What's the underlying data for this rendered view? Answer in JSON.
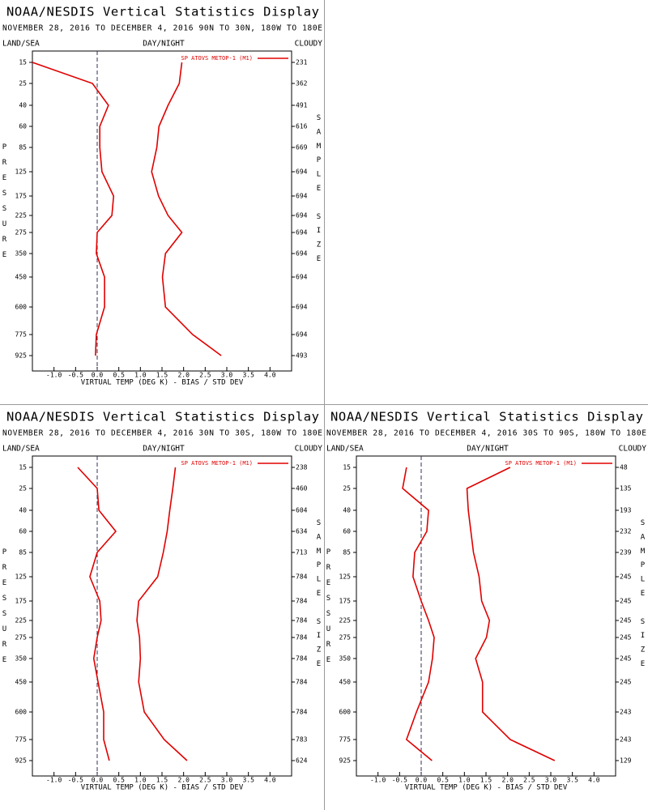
{
  "chart_data": [
    {
      "type": "line",
      "title": "NOAA/NESDIS Vertical Statistics Display",
      "subtitle": "NOVEMBER 28, 2016 TO DECEMBER 4, 2016 90N TO 30N, 180W TO 180E",
      "left_header": "LAND/SEA",
      "center_header": "DAY/NIGHT",
      "right_header": "CLOUDY",
      "y_label": "PRESSURE",
      "y2_label": "SAMPLE SIZE",
      "x_label": "VIRTUAL TEMP (DEG K) - BIAS / STD DEV",
      "categories": [
        "15",
        "25",
        "40",
        "60",
        "85",
        "125",
        "175",
        "225",
        "275",
        "350",
        "450",
        "600",
        "775",
        "925"
      ],
      "sample_size": [
        231,
        362,
        491,
        616,
        669,
        694,
        694,
        694,
        694,
        694,
        694,
        694,
        694,
        493
      ],
      "series": [
        {
          "name": "SP ATOVS METOP-1 (M1)",
          "color": "#e00000",
          "values": [
            -1.5,
            -0.11,
            0.26,
            0.06,
            0.06,
            0.11,
            0.38,
            0.34,
            0.0,
            -0.02,
            0.17,
            0.17,
            -0.02,
            -0.04
          ],
          "std_dev": [
            1.96,
            1.9,
            1.64,
            1.43,
            1.38,
            1.26,
            1.42,
            1.64,
            1.96,
            1.58,
            1.51,
            1.58,
            2.21,
            2.87
          ]
        }
      ],
      "xlim": [
        -1.5,
        4.5
      ],
      "xticks": [
        {
          "value": -1,
          "label": "-1.0"
        },
        {
          "value": -0.5,
          "label": "-0.5"
        },
        {
          "value": 0,
          "label": "0.0"
        },
        {
          "value": 0.5,
          "label": "0.5"
        },
        {
          "value": 1,
          "label": "1.0"
        },
        {
          "value": 1.5,
          "label": "1.5"
        },
        {
          "value": 2,
          "label": "2.0"
        },
        {
          "value": 2.5,
          "label": "2.5"
        },
        {
          "value": 3,
          "label": "3.0"
        },
        {
          "value": 3.5,
          "label": "3.5"
        },
        {
          "value": 4,
          "label": "4.0"
        }
      ]
    },
    {
      "type": "line",
      "title": "NOAA/NESDIS Vertical Statistics Display",
      "subtitle": "NOVEMBER 28, 2016 TO DECEMBER 4, 2016 30N TO 30S, 180W TO 180E",
      "left_header": "LAND/SEA",
      "center_header": "DAY/NIGHT",
      "right_header": "CLOUDY",
      "y_label": "PRESSURE",
      "y2_label": "SAMPLE SIZE",
      "x_label": "VIRTUAL TEMP (DEG K) - BIAS / STD DEV",
      "categories": [
        "15",
        "25",
        "40",
        "60",
        "85",
        "125",
        "175",
        "225",
        "275",
        "350",
        "450",
        "600",
        "775",
        "925"
      ],
      "sample_size": [
        238,
        460,
        604,
        634,
        713,
        784,
        784,
        784,
        784,
        784,
        784,
        784,
        783,
        624
      ],
      "series": [
        {
          "name": "SP ATOVS METOP-1 (M1)",
          "color": "#e00000",
          "values": [
            -0.45,
            0.0,
            0.04,
            0.43,
            0.0,
            -0.17,
            0.06,
            0.09,
            0.0,
            -0.08,
            0.02,
            0.15,
            0.15,
            0.28
          ],
          "std_dev": [
            1.81,
            1.75,
            1.68,
            1.62,
            1.53,
            1.4,
            0.96,
            0.92,
            0.98,
            1.0,
            0.96,
            1.09,
            1.55,
            2.08
          ]
        }
      ],
      "xlim": [
        -1.5,
        4.5
      ],
      "xticks": [
        {
          "value": -1,
          "label": "-1.0"
        },
        {
          "value": -0.5,
          "label": "-0.5"
        },
        {
          "value": 0,
          "label": "0.0"
        },
        {
          "value": 0.5,
          "label": "0.5"
        },
        {
          "value": 1,
          "label": "1.0"
        },
        {
          "value": 1.5,
          "label": "1.5"
        },
        {
          "value": 2,
          "label": "2.0"
        },
        {
          "value": 2.5,
          "label": "2.5"
        },
        {
          "value": 3,
          "label": "3.0"
        },
        {
          "value": 3.5,
          "label": "3.5"
        },
        {
          "value": 4,
          "label": "4.0"
        }
      ]
    },
    {
      "type": "line",
      "title": "NOAA/NESDIS Vertical Statistics Display",
      "subtitle": "NOVEMBER 28, 2016 TO DECEMBER 4, 2016 30S TO 90S, 180W TO 180E",
      "left_header": "LAND/SEA",
      "center_header": "DAY/NIGHT",
      "right_header": "CLOUDY",
      "y_label": "PRESSURE",
      "y2_label": "SAMPLE SIZE",
      "x_label": "VIRTUAL TEMP (DEG K) - BIAS / STD DEV",
      "categories": [
        "15",
        "25",
        "40",
        "60",
        "85",
        "125",
        "175",
        "225",
        "275",
        "350",
        "450",
        "600",
        "775",
        "925"
      ],
      "sample_size": [
        48,
        135,
        193,
        232,
        239,
        245,
        245,
        245,
        245,
        245,
        245,
        243,
        243,
        129
      ],
      "series": [
        {
          "name": "SP ATOVS METOP-1 (M1)",
          "color": "#e00000",
          "values": [
            -0.34,
            -0.43,
            0.17,
            0.13,
            -0.15,
            -0.19,
            0.0,
            0.17,
            0.3,
            0.26,
            0.17,
            -0.11,
            -0.34,
            0.25
          ],
          "std_dev": [
            2.06,
            1.06,
            1.09,
            1.15,
            1.21,
            1.34,
            1.4,
            1.58,
            1.51,
            1.26,
            1.42,
            1.42,
            2.06,
            3.09
          ]
        }
      ],
      "xlim": [
        -1.5,
        4.5
      ],
      "xticks": [
        {
          "value": -1,
          "label": "-1.0"
        },
        {
          "value": -0.5,
          "label": "-0.5"
        },
        {
          "value": 0,
          "label": "0.0"
        },
        {
          "value": 0.5,
          "label": "0.5"
        },
        {
          "value": 1,
          "label": "1.0"
        },
        {
          "value": 1.5,
          "label": "1.5"
        },
        {
          "value": 2,
          "label": "2.0"
        },
        {
          "value": 2.5,
          "label": "2.5"
        },
        {
          "value": 3,
          "label": "3.0"
        },
        {
          "value": 3.5,
          "label": "3.5"
        },
        {
          "value": 4,
          "label": "4.0"
        }
      ]
    }
  ]
}
